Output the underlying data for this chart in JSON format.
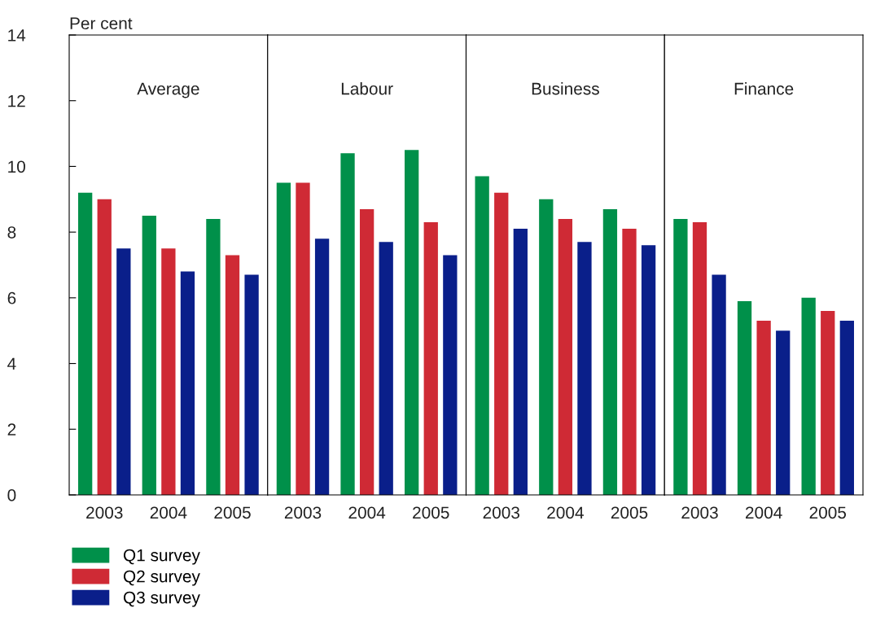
{
  "chart_data": [
    {
      "type": "bar",
      "title": "Average",
      "ylabel": "Per cent",
      "categories": [
        "2003",
        "2004",
        "2005"
      ],
      "ylim": [
        0,
        14
      ],
      "yticks": [
        0,
        2,
        4,
        6,
        8,
        10,
        12,
        14
      ],
      "legend": "bottom",
      "series": [
        {
          "name": "Q1 survey",
          "color": "#00904a",
          "values": [
            9.2,
            8.5,
            8.4
          ]
        },
        {
          "name": "Q2 survey",
          "color": "#cf2a35",
          "values": [
            9.0,
            7.5,
            7.3
          ]
        },
        {
          "name": "Q3 survey",
          "color": "#0a1f8a",
          "values": [
            7.5,
            6.8,
            6.7
          ]
        }
      ]
    },
    {
      "type": "bar",
      "title": "Labour",
      "categories": [
        "2003",
        "2004",
        "2005"
      ],
      "ylim": [
        0,
        14
      ],
      "tick_labels": "x",
      "series": [
        {
          "color": "#00904a",
          "values": [
            9.5,
            10.4,
            10.5
          ]
        },
        {
          "color": "#cf2a35",
          "values": [
            9.5,
            8.7,
            8.3
          ]
        },
        {
          "color": "#0a1f8a",
          "values": [
            7.8,
            7.7,
            7.3
          ]
        }
      ]
    },
    {
      "type": "bar",
      "title": "Business",
      "categories": [
        "2003",
        "2004",
        "2005"
      ],
      "ylim": [
        0,
        14
      ],
      "tick_labels": "x",
      "series": [
        {
          "color": "#00904a",
          "values": [
            9.7,
            9.0,
            8.7
          ]
        },
        {
          "color": "#cf2a35",
          "values": [
            9.2,
            8.4,
            8.1
          ]
        },
        {
          "color": "#0a1f8a",
          "values": [
            8.1,
            7.7,
            7.6
          ]
        }
      ]
    },
    {
      "type": "bar",
      "title": "Finance",
      "categories": [
        "2003",
        "2004",
        "2005"
      ],
      "ylim": [
        0,
        14
      ],
      "tick_labels": "x",
      "series": [
        {
          "color": "#00904a",
          "values": [
            8.4,
            5.9,
            6.0
          ]
        },
        {
          "color": "#cf2a35",
          "values": [
            8.3,
            5.3,
            5.6
          ]
        },
        {
          "color": "#0a1f8a",
          "values": [
            6.7,
            5.0,
            5.3
          ]
        }
      ]
    }
  ]
}
